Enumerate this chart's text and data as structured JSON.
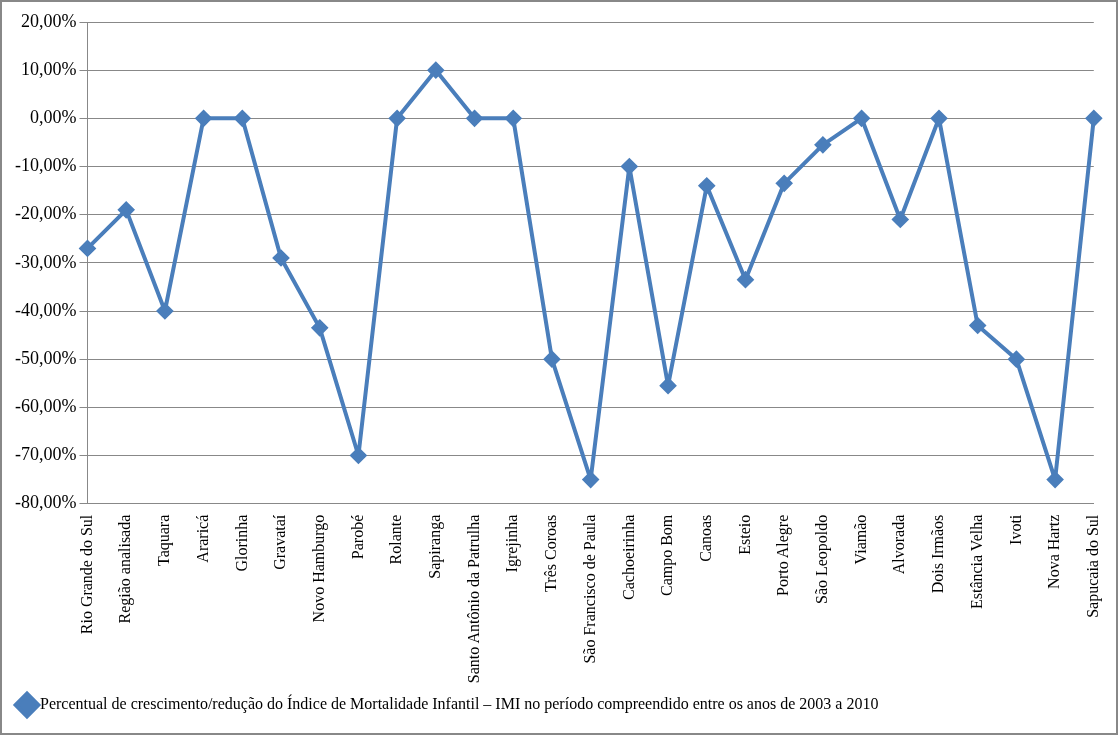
{
  "chart_data": {
    "type": "line",
    "categories": [
      "Rio Grande do Sul",
      "Região analisada",
      "Taquara",
      "Araricá",
      "Glorinha",
      "Gravataí",
      "Novo Hamburgo",
      "Parobé",
      "Rolante",
      "Sapiranga",
      "Santo Antônio da Patrulha",
      "Igrejinha",
      "Três Coroas",
      "São Francisco de Paula",
      "Cachoeirinha",
      "Campo Bom",
      "Canoas",
      "Esteio",
      "Porto Alegre",
      "São Leopoldo",
      "Viamão",
      "Alvorada",
      "Dois Irmãos",
      "Estância Velha",
      "Ivoti",
      "Nova Hartz",
      "Sapucaia do Sul"
    ],
    "series": [
      {
        "name": "Percentual de crescimento/redução do Índice de Mortalidade Infantil – IMI no período compreendido entre os anos de 2003 a 2010",
        "color": "#4a7ebb",
        "values": [
          -27,
          -19,
          -40,
          0,
          0,
          -29,
          -43.5,
          -70,
          0,
          10,
          0,
          0,
          -50,
          -75,
          -10,
          -55.5,
          -14,
          -33.5,
          -13.5,
          -5.5,
          0,
          -21,
          0,
          -43,
          -50,
          -75,
          0
        ]
      }
    ],
    "ylim": [
      -80,
      20
    ],
    "yticks": [
      {
        "value": 20,
        "label": "20,00%"
      },
      {
        "value": 10,
        "label": "10,00%"
      },
      {
        "value": 0,
        "label": "0,00%"
      },
      {
        "value": -10,
        "label": "-10,00%"
      },
      {
        "value": -20,
        "label": "-20,00%"
      },
      {
        "value": -30,
        "label": "-30,00%"
      },
      {
        "value": -40,
        "label": "-40,00%"
      },
      {
        "value": -50,
        "label": "-50,00%"
      },
      {
        "value": -60,
        "label": "-60,00%"
      },
      {
        "value": -70,
        "label": "-70,00%"
      },
      {
        "value": -80,
        "label": "-80,00%"
      }
    ],
    "grid": "y",
    "legend": "bottom",
    "marker": "diamond",
    "line_style": "solid"
  }
}
